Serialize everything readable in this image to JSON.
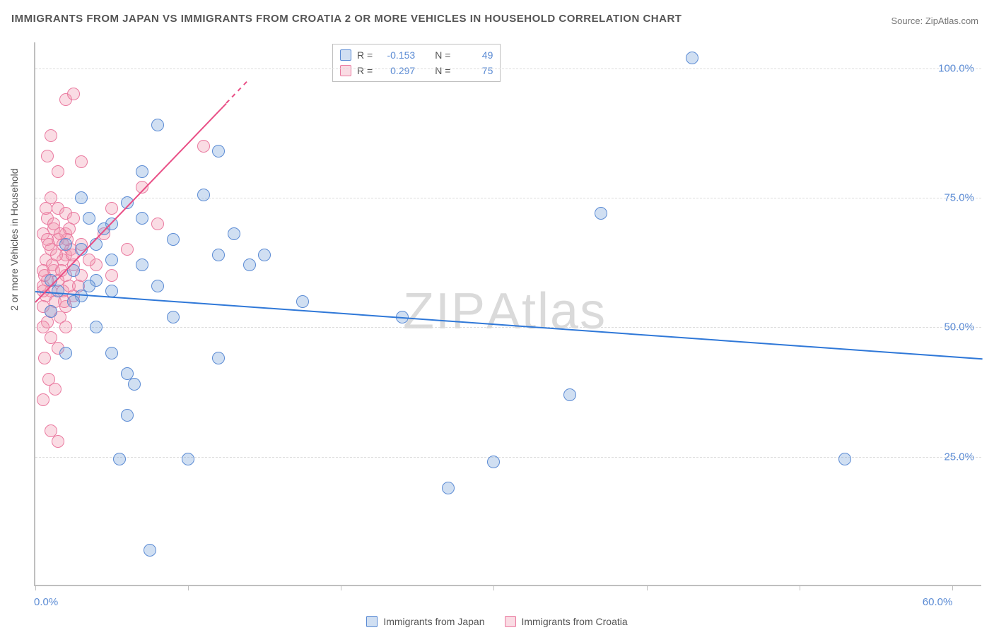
{
  "title": "IMMIGRANTS FROM JAPAN VS IMMIGRANTS FROM CROATIA 2 OR MORE VEHICLES IN HOUSEHOLD CORRELATION CHART",
  "source": "Source: ZipAtlas.com",
  "watermark_a": "ZIP",
  "watermark_b": "Atlas",
  "y_axis_title": "2 or more Vehicles in Household",
  "colors": {
    "series_a_fill": "rgba(120,164,219,0.35)",
    "series_a_stroke": "#5b8bd4",
    "series_b_fill": "rgba(242,154,177,0.35)",
    "series_b_stroke": "#ea7aa0",
    "axis_label": "#5b8bd4",
    "grid": "#dcdcdc",
    "axis": "#bfbfbf",
    "text": "#555555",
    "trend_a": "#2f78d8",
    "trend_b": "#e94f86"
  },
  "plot": {
    "x_min": 0,
    "x_max": 62,
    "y_min": 0,
    "y_max": 105,
    "marker_radius": 9
  },
  "y_ticks": [
    {
      "v": 25,
      "label": "25.0%"
    },
    {
      "v": 50,
      "label": "50.0%"
    },
    {
      "v": 75,
      "label": "75.0%"
    },
    {
      "v": 100,
      "label": "100.0%"
    }
  ],
  "x_ticks": [
    0,
    10,
    20,
    30,
    40,
    50,
    60
  ],
  "x_labels": [
    {
      "v": 0,
      "label": "0.0%"
    },
    {
      "v": 60,
      "label": "60.0%"
    }
  ],
  "corr_box": {
    "rows": [
      {
        "series": "a",
        "r_label": "R =",
        "r": "-0.153",
        "n_label": "N =",
        "n": "49"
      },
      {
        "series": "b",
        "r_label": "R =",
        "r": "0.297",
        "n_label": "N =",
        "n": "75"
      }
    ]
  },
  "bottom_legend": [
    {
      "series": "a",
      "label": "Immigrants from Japan"
    },
    {
      "series": "b",
      "label": "Immigrants from Croatia"
    }
  ],
  "trend_lines": {
    "a": {
      "x1": 0,
      "y1": 57,
      "x2": 62,
      "y2": 44
    },
    "b": {
      "x1": 0,
      "y1": 55,
      "x2": 14,
      "y2": 98,
      "dash_from": 12.5
    }
  },
  "series_a": [
    {
      "x": 43,
      "y": 102
    },
    {
      "x": 53,
      "y": 24.5
    },
    {
      "x": 37,
      "y": 72
    },
    {
      "x": 35,
      "y": 37
    },
    {
      "x": 30,
      "y": 24
    },
    {
      "x": 27,
      "y": 19
    },
    {
      "x": 24,
      "y": 52
    },
    {
      "x": 17.5,
      "y": 55
    },
    {
      "x": 15,
      "y": 64
    },
    {
      "x": 14,
      "y": 62
    },
    {
      "x": 13,
      "y": 68
    },
    {
      "x": 12,
      "y": 84
    },
    {
      "x": 12,
      "y": 64
    },
    {
      "x": 12,
      "y": 44
    },
    {
      "x": 11,
      "y": 75.5
    },
    {
      "x": 10,
      "y": 24.5
    },
    {
      "x": 9,
      "y": 52
    },
    {
      "x": 9,
      "y": 67
    },
    {
      "x": 8,
      "y": 89
    },
    {
      "x": 8,
      "y": 58
    },
    {
      "x": 7.5,
      "y": 7
    },
    {
      "x": 7,
      "y": 80
    },
    {
      "x": 7,
      "y": 71
    },
    {
      "x": 7,
      "y": 62
    },
    {
      "x": 6.5,
      "y": 39
    },
    {
      "x": 6,
      "y": 74
    },
    {
      "x": 6,
      "y": 41
    },
    {
      "x": 6,
      "y": 33
    },
    {
      "x": 5.5,
      "y": 24.5
    },
    {
      "x": 5,
      "y": 70
    },
    {
      "x": 5,
      "y": 63
    },
    {
      "x": 5,
      "y": 57
    },
    {
      "x": 5,
      "y": 45
    },
    {
      "x": 4.5,
      "y": 69
    },
    {
      "x": 4,
      "y": 66
    },
    {
      "x": 4,
      "y": 59
    },
    {
      "x": 4,
      "y": 50
    },
    {
      "x": 3.5,
      "y": 71
    },
    {
      "x": 3.5,
      "y": 58
    },
    {
      "x": 3,
      "y": 75
    },
    {
      "x": 3,
      "y": 65
    },
    {
      "x": 3,
      "y": 56
    },
    {
      "x": 2.5,
      "y": 61
    },
    {
      "x": 2.5,
      "y": 55
    },
    {
      "x": 2,
      "y": 66
    },
    {
      "x": 2,
      "y": 45
    },
    {
      "x": 1.5,
      "y": 57
    },
    {
      "x": 1,
      "y": 59
    },
    {
      "x": 1,
      "y": 53
    }
  ],
  "series_b": [
    {
      "x": 2,
      "y": 94
    },
    {
      "x": 2.5,
      "y": 95
    },
    {
      "x": 1,
      "y": 87
    },
    {
      "x": 0.8,
      "y": 83
    },
    {
      "x": 3,
      "y": 82
    },
    {
      "x": 1.5,
      "y": 80
    },
    {
      "x": 7,
      "y": 77
    },
    {
      "x": 5,
      "y": 73
    },
    {
      "x": 1,
      "y": 75
    },
    {
      "x": 1.5,
      "y": 73
    },
    {
      "x": 2,
      "y": 72
    },
    {
      "x": 0.8,
      "y": 71
    },
    {
      "x": 2.5,
      "y": 71
    },
    {
      "x": 1.2,
      "y": 69
    },
    {
      "x": 2,
      "y": 68
    },
    {
      "x": 0.5,
      "y": 68
    },
    {
      "x": 1.5,
      "y": 67
    },
    {
      "x": 3,
      "y": 66
    },
    {
      "x": 1,
      "y": 65
    },
    {
      "x": 2,
      "y": 64
    },
    {
      "x": 0.7,
      "y": 63
    },
    {
      "x": 1.8,
      "y": 63
    },
    {
      "x": 2.5,
      "y": 62
    },
    {
      "x": 4,
      "y": 62
    },
    {
      "x": 0.5,
      "y": 61
    },
    {
      "x": 1.2,
      "y": 61
    },
    {
      "x": 2,
      "y": 60
    },
    {
      "x": 3,
      "y": 60
    },
    {
      "x": 0.8,
      "y": 59
    },
    {
      "x": 1.5,
      "y": 59
    },
    {
      "x": 2.2,
      "y": 58
    },
    {
      "x": 0.5,
      "y": 58
    },
    {
      "x": 1,
      "y": 57
    },
    {
      "x": 1.8,
      "y": 57
    },
    {
      "x": 0.7,
      "y": 56
    },
    {
      "x": 2.5,
      "y": 56
    },
    {
      "x": 1.3,
      "y": 55
    },
    {
      "x": 0.5,
      "y": 54
    },
    {
      "x": 2,
      "y": 54
    },
    {
      "x": 1,
      "y": 53
    },
    {
      "x": 1.6,
      "y": 52
    },
    {
      "x": 0.8,
      "y": 51
    },
    {
      "x": 2.3,
      "y": 65
    },
    {
      "x": 1,
      "y": 48
    },
    {
      "x": 1.5,
      "y": 46
    },
    {
      "x": 0.6,
      "y": 44
    },
    {
      "x": 2,
      "y": 50
    },
    {
      "x": 0.9,
      "y": 40
    },
    {
      "x": 1.3,
      "y": 38
    },
    {
      "x": 0.5,
      "y": 36
    },
    {
      "x": 1.8,
      "y": 66
    },
    {
      "x": 4.5,
      "y": 68
    },
    {
      "x": 3.5,
      "y": 63
    },
    {
      "x": 5,
      "y": 60
    },
    {
      "x": 6,
      "y": 65
    },
    {
      "x": 11,
      "y": 85
    },
    {
      "x": 8,
      "y": 70
    },
    {
      "x": 1,
      "y": 30
    },
    {
      "x": 1.5,
      "y": 28
    },
    {
      "x": 0.8,
      "y": 67
    },
    {
      "x": 2.2,
      "y": 69
    },
    {
      "x": 1.1,
      "y": 62
    },
    {
      "x": 0.6,
      "y": 60
    },
    {
      "x": 1.4,
      "y": 64
    },
    {
      "x": 0.9,
      "y": 66
    },
    {
      "x": 2.8,
      "y": 58
    },
    {
      "x": 1.7,
      "y": 61
    },
    {
      "x": 0.5,
      "y": 57
    },
    {
      "x": 2.1,
      "y": 67
    },
    {
      "x": 1.2,
      "y": 70
    },
    {
      "x": 0.7,
      "y": 73
    },
    {
      "x": 1.9,
      "y": 55
    },
    {
      "x": 0.5,
      "y": 50
    },
    {
      "x": 1.6,
      "y": 68
    },
    {
      "x": 2.4,
      "y": 64
    }
  ]
}
